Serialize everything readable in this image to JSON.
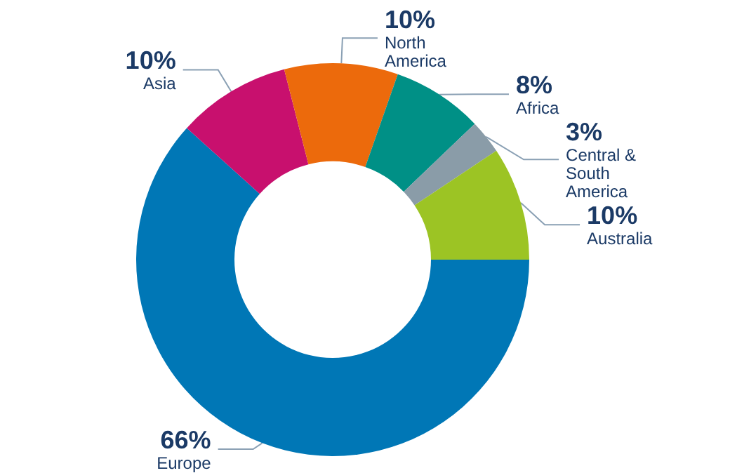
{
  "chart_data": {
    "type": "donut",
    "categories": [
      "Europe",
      "Asia",
      "North America",
      "Africa",
      "Central & South America",
      "Australia"
    ],
    "values": [
      66,
      10,
      10,
      8,
      3,
      10
    ],
    "value_labels": [
      "66%",
      "10%",
      "10%",
      "8%",
      "3%",
      "10%"
    ],
    "colors": [
      "#0077b6",
      "#c8106e",
      "#ec6a0c",
      "#009086",
      "#8a9ca8",
      "#9cc424"
    ],
    "legend": false
  }
}
